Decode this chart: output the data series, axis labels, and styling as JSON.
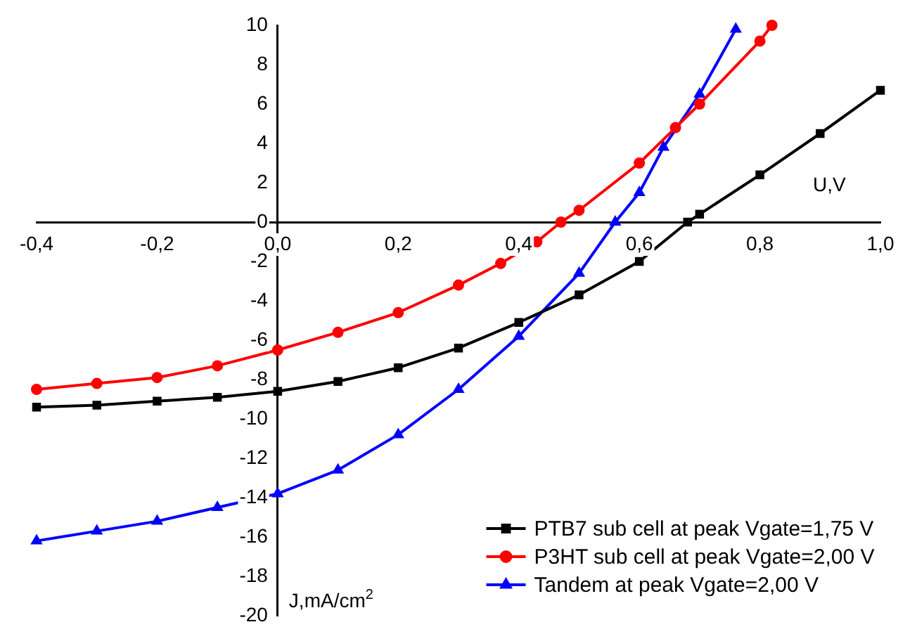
{
  "chart_data": {
    "type": "line",
    "xlabel": "U,V",
    "ylabel": "J,mA/cm$^{2}$",
    "xlim": [
      -0.4,
      1.0
    ],
    "ylim": [
      -20,
      10
    ],
    "xticks": [
      {
        "value": -0.4,
        "label": "-0,4"
      },
      {
        "value": -0.2,
        "label": "-0,2"
      },
      {
        "value": 0,
        "label": "0,0"
      },
      {
        "value": 0.2,
        "label": "0,2"
      },
      {
        "value": 0.4,
        "label": "0,4"
      },
      {
        "value": 0.6,
        "label": "0,6"
      },
      {
        "value": 0.8,
        "label": "0,8"
      },
      {
        "value": 1.0,
        "label": "1,0"
      }
    ],
    "yticks": [
      -20,
      -18,
      -16,
      -14,
      -12,
      -10,
      -8,
      -6,
      -4,
      -2,
      0,
      2,
      4,
      6,
      8,
      10
    ],
    "grid": false,
    "legend": "bottom right",
    "line_style": "solid",
    "series": [
      {
        "name": "PTB7 sub cell at peak Vgate=1,75 V",
        "color": "#000000",
        "marker": "square",
        "x": [
          -0.4,
          -0.3,
          -0.2,
          -0.1,
          0,
          0.1,
          0.2,
          0.3,
          0.4,
          0.5,
          0.6,
          0.68,
          0.7,
          0.8,
          0.9,
          1.0
        ],
        "values": [
          -9.4,
          -9.3,
          -9.1,
          -8.9,
          -8.6,
          -8.1,
          -7.4,
          -6.4,
          -5.1,
          -3.7,
          -2.0,
          0,
          0.4,
          2.4,
          4.5,
          6.7
        ]
      },
      {
        "name": "P3HT sub cell at peak Vgate=2,00 V",
        "color": "#ff0000",
        "marker": "circle",
        "x": [
          -0.4,
          -0.3,
          -0.2,
          -0.1,
          0,
          0.1,
          0.2,
          0.3,
          0.37,
          0.43,
          0.47,
          0.5,
          0.6,
          0.66,
          0.7,
          0.8,
          0.82
        ],
        "values": [
          -8.5,
          -8.2,
          -7.9,
          -7.3,
          -6.5,
          -5.6,
          -4.6,
          -3.2,
          -2.1,
          -1.0,
          0,
          0.6,
          3.0,
          4.8,
          6.0,
          9.2,
          10
        ]
      },
      {
        "name": "Tandem at peak Vgate=2,00 V",
        "color": "#0000ff",
        "marker": "triangle",
        "x": [
          -0.4,
          -0.3,
          -0.2,
          -0.1,
          0,
          0.1,
          0.2,
          0.3,
          0.4,
          0.5,
          0.56,
          0.6,
          0.64,
          0.7,
          0.76
        ],
        "values": [
          -16.2,
          -15.7,
          -15.2,
          -14.5,
          -13.8,
          -12.6,
          -10.8,
          -8.5,
          -5.8,
          -2.6,
          0,
          1.5,
          3.8,
          6.5,
          9.8
        ]
      }
    ]
  }
}
